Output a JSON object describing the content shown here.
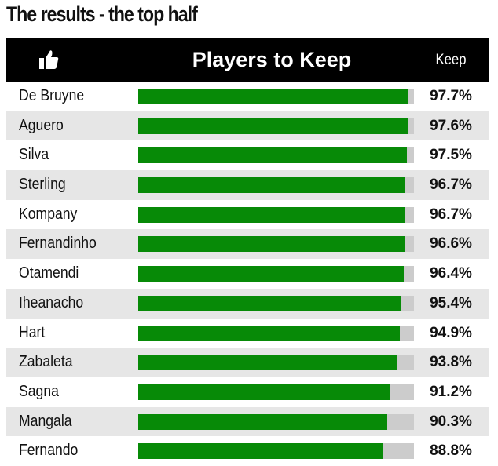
{
  "title": "The results - the top half",
  "header": {
    "icon": "thumbs-up-icon",
    "title": "Players to Keep",
    "keep_label": "Keep"
  },
  "colors": {
    "bar": "#078a07",
    "track": "#cccccc",
    "header_bg": "#000000",
    "stripe": "#e6e6e6"
  },
  "chart_data": {
    "type": "bar",
    "orientation": "horizontal",
    "title": "Players to Keep",
    "ylabel": "Keep",
    "xlim": [
      0,
      100
    ],
    "categories": [
      "De Bruyne",
      "Aguero",
      "Silva",
      "Sterling",
      "Kompany",
      "Fernandinho",
      "Otamendi",
      "Iheanacho",
      "Hart",
      "Zabaleta",
      "Sagna",
      "Mangala",
      "Fernando"
    ],
    "values": [
      97.7,
      97.6,
      97.5,
      96.7,
      96.7,
      96.6,
      96.4,
      95.4,
      94.9,
      93.8,
      91.2,
      90.3,
      88.8
    ],
    "labels": [
      "97.7%",
      "97.6%",
      "97.5%",
      "96.7%",
      "96.7%",
      "96.6%",
      "96.4%",
      "95.4%",
      "94.9%",
      "93.8%",
      "91.2%",
      "90.3%",
      "88.8%"
    ]
  }
}
